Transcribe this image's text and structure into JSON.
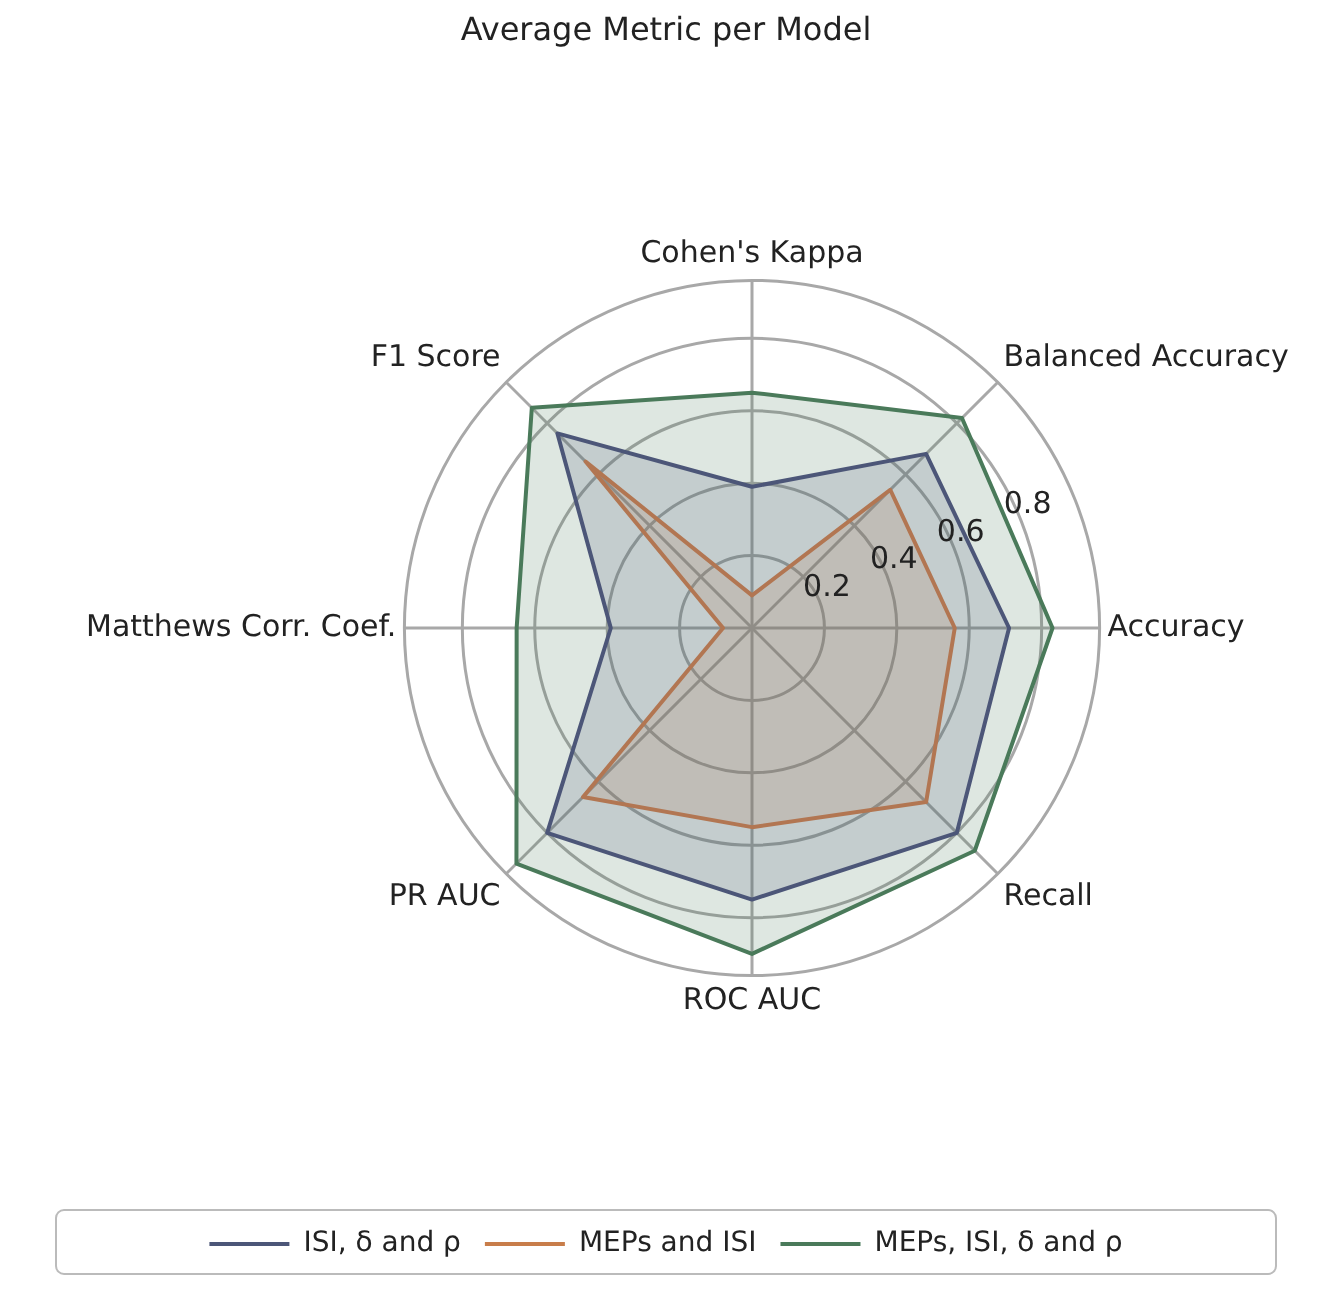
{
  "chart_data": {
    "type": "radar",
    "title": "Average Metric per Model",
    "categories": [
      "Cohen's Kappa",
      "Balanced Accuracy",
      "Accuracy",
      "Recall",
      "ROC AUC",
      "PR AUC",
      "Matthews Corr. Coef.",
      "F1 Score"
    ],
    "series": [
      {
        "name": "ISI, δ and ρ",
        "color": "#4c5678",
        "values": [
          0.39,
          0.68,
          0.71,
          0.8,
          0.75,
          0.8,
          0.39,
          0.76
        ]
      },
      {
        "name": "MEPs and ISI",
        "color": "#c87d4a",
        "values": [
          0.09,
          0.54,
          0.56,
          0.68,
          0.55,
          0.66,
          0.08,
          0.65
        ]
      },
      {
        "name": "MEPs, ISI, δ and ρ",
        "color": "#4a7a5a",
        "values": [
          0.65,
          0.82,
          0.83,
          0.87,
          0.9,
          0.92,
          0.65,
          0.86
        ]
      }
    ],
    "ylim": [
      0,
      0.96
    ],
    "yticks": [
      0.2,
      0.4,
      0.6,
      0.8
    ],
    "grid": true,
    "legend": "bottom",
    "marker": "none",
    "line_style": "solid"
  }
}
